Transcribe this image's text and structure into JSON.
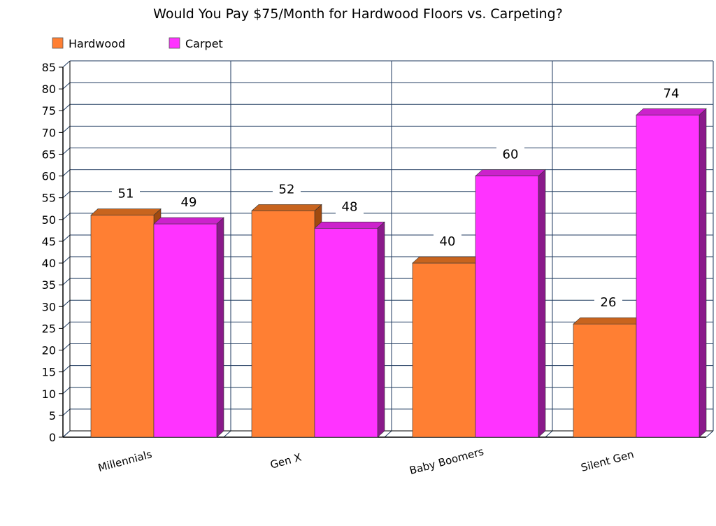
{
  "chart_data": {
    "type": "bar",
    "title": "Would You Pay $75/Month for Hardwood Floors vs. Carpeting?",
    "categories": [
      "Millennials",
      "Gen X",
      "Baby Boomers",
      "Silent Gen"
    ],
    "series": [
      {
        "name": "Hardwood",
        "values": [
          51,
          52,
          40,
          26
        ],
        "color": "#ff7f33",
        "top_color": "#c8641e",
        "side_color": "#a04a10"
      },
      {
        "name": "Carpet",
        "values": [
          49,
          48,
          60,
          74
        ],
        "color": "#ff33ff",
        "top_color": "#cc22cc",
        "side_color": "#8a1a8a"
      }
    ],
    "ylim": [
      0,
      85
    ],
    "yticks": [
      0,
      5,
      10,
      15,
      20,
      25,
      30,
      35,
      40,
      45,
      50,
      55,
      60,
      65,
      70,
      75,
      80,
      85
    ],
    "xlabel": "",
    "ylabel": "",
    "grid": true,
    "legend_position": "top-left",
    "data_labels": true
  }
}
